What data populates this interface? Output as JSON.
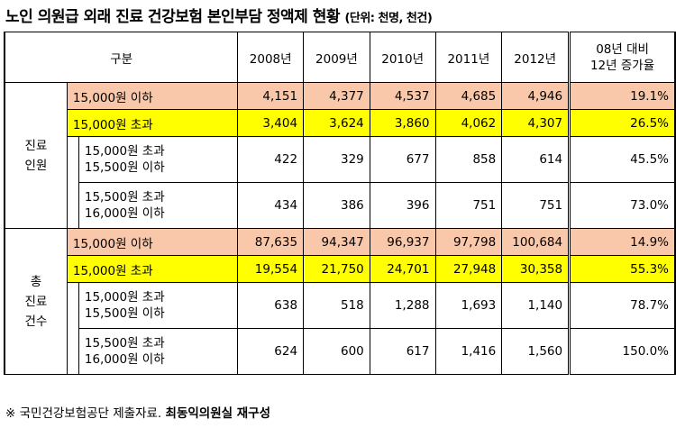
{
  "title": "노인 의원급 외래 진료 건강보험 본인부담 정액제 현황",
  "unit": "(단위: 천명, 천건)",
  "headers": {
    "category": "구분",
    "years": [
      "2008년",
      "2009년",
      "2010년",
      "2011년",
      "2012년"
    ],
    "change_line1": "08년 대비",
    "change_line2": "12년 증가율"
  },
  "groups": [
    {
      "label_lines": [
        "진료",
        "인원"
      ],
      "rows": [
        {
          "label": "15,000원 이하",
          "values": [
            "4,151",
            "4,377",
            "4,537",
            "4,685",
            "4,946"
          ],
          "rate": "19.1%"
        },
        {
          "label": "15,000원 초과",
          "values": [
            "3,404",
            "3,624",
            "3,860",
            "4,062",
            "4,307"
          ],
          "rate": "26.5%"
        },
        {
          "label_line1": "15,000원 초과",
          "label_line2": "15,500원 이하",
          "values": [
            "422",
            "329",
            "677",
            "858",
            "614"
          ],
          "rate": "45.5%"
        },
        {
          "label_line1": "15,500원 초과",
          "label_line2": "16,000원 이하",
          "values": [
            "434",
            "386",
            "396",
            "751",
            "751"
          ],
          "rate": "73.0%"
        }
      ]
    },
    {
      "label_lines": [
        "총",
        "진료",
        "건수"
      ],
      "rows": [
        {
          "label": "15,000원 이하",
          "values": [
            "87,635",
            "94,347",
            "96,937",
            "97,798",
            "100,684"
          ],
          "rate": "14.9%"
        },
        {
          "label": "15,000원 초과",
          "values": [
            "19,554",
            "21,750",
            "24,701",
            "27,948",
            "30,358"
          ],
          "rate": "55.3%"
        },
        {
          "label_line1": "15,000원 초과",
          "label_line2": "15,500원 이하",
          "values": [
            "638",
            "518",
            "1,288",
            "1,693",
            "1,140"
          ],
          "rate": "78.7%"
        },
        {
          "label_line1": "15,500원 초과",
          "label_line2": "16,000원 이하",
          "values": [
            "624",
            "600",
            "617",
            "1,416",
            "1,560"
          ],
          "rate": "150.0%"
        }
      ]
    }
  ],
  "footer": {
    "source": "※ 국민건강보험공단 제출자료.",
    "credit": "최동익의원실 재구성"
  },
  "colors": {
    "orange_row": "#f9c7a9",
    "yellow_row": "#ffff00"
  }
}
